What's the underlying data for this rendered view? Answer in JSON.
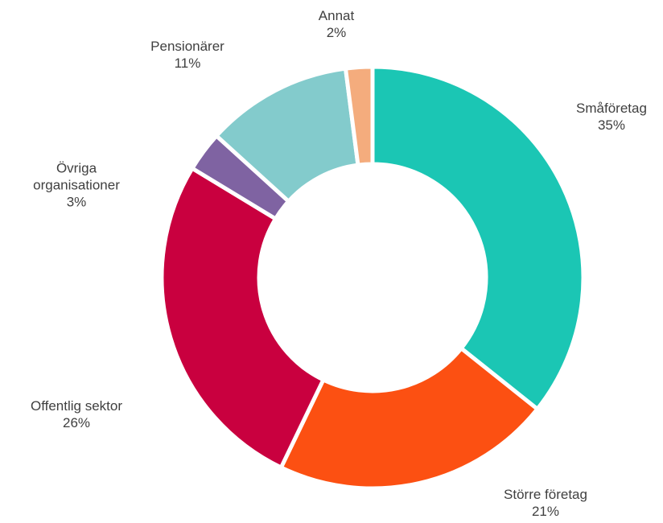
{
  "chart_data": {
    "type": "donut",
    "categories": [
      "Småföretag",
      "Större företag",
      "Offentlig sektor",
      "Övriga organisationer",
      "Pensionärer",
      "Annat"
    ],
    "values": [
      35,
      21,
      26,
      3,
      11,
      2
    ],
    "value_labels": [
      "35%",
      "21%",
      "26%",
      "3%",
      "11%",
      "2%"
    ],
    "colors": [
      "#1bc6b4",
      "#fc5012",
      "#c9003f",
      "#7f63a2",
      "#83cbcc",
      "#f4ac7d"
    ]
  }
}
